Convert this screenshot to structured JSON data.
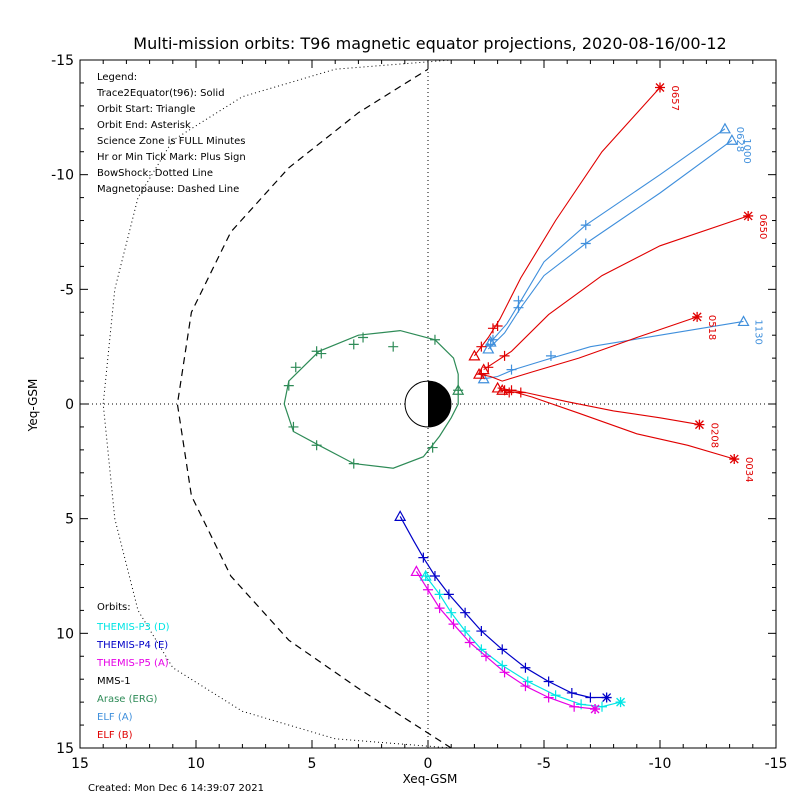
{
  "chart_data": {
    "type": "line",
    "title": "Multi-mission orbits: T96 magnetic equator projections, 2020-08-16/00-12",
    "xlabel": "Xeq-GSM",
    "ylabel": "Yeq-GSM",
    "xlim": [
      15,
      -15
    ],
    "ylim": [
      15,
      -15
    ],
    "x_ticks": [
      "15",
      "10",
      "5",
      "0",
      "-5",
      "-10",
      "-15"
    ],
    "y_ticks": [
      "-15",
      "-10",
      "-5",
      "0",
      "5",
      "10",
      "15"
    ],
    "created": "Created: Mon Dec  6 14:39:07 2021",
    "legend_lines": [
      "Legend:",
      "Trace2Equator(t96): Solid",
      "Orbit Start: Triangle",
      "Orbit End: Asterisk",
      "Science Zone is FULL Minutes",
      "Hr or Min Tick Mark: Plus Sign",
      "BowShock: Dotted Line",
      "Magnetopause: Dashed Line"
    ],
    "orbits_header": "Orbits:",
    "orbit_legend": [
      {
        "label": "THEMIS-P3 (D)",
        "color": "#00e5e5"
      },
      {
        "label": "THEMIS-P4 (E)",
        "color": "#0000c8"
      },
      {
        "label": "THEMIS-P5 (A)",
        "color": "#e600e6"
      },
      {
        "label": "MMS-1",
        "color": "#000000"
      },
      {
        "label": "Arase (ERG)",
        "color": "#2e8b57"
      },
      {
        "label": "ELF (A)",
        "color": "#3f8fdc"
      },
      {
        "label": "ELF (B)",
        "color": "#e00000"
      }
    ],
    "bow_shock": {
      "nose_x": 14.0,
      "points": [
        [
          -6.5,
          15
        ],
        [
          -1,
          15
        ],
        [
          4,
          14.6
        ],
        [
          8,
          13.4
        ],
        [
          11,
          11.5
        ],
        [
          12.5,
          9
        ],
        [
          13.5,
          5
        ],
        [
          14,
          0
        ],
        [
          13.5,
          -5
        ],
        [
          12.5,
          -9
        ],
        [
          11,
          -11.5
        ],
        [
          8,
          -13.4
        ],
        [
          4,
          -14.6
        ],
        [
          -1,
          -15
        ],
        [
          -6.5,
          -15
        ]
      ]
    },
    "magnetopause": {
      "points": [
        [
          -1,
          15
        ],
        [
          3,
          12.4
        ],
        [
          6,
          10.3
        ],
        [
          8.5,
          7.5
        ],
        [
          10.2,
          4
        ],
        [
          10.8,
          0
        ],
        [
          10.2,
          -4
        ],
        [
          8.5,
          -7.5
        ],
        [
          6,
          -10.3
        ],
        [
          3,
          -12.7
        ],
        [
          0,
          -14.6
        ]
      ]
    },
    "series": [
      {
        "name": "THEMIS-P3 (D)",
        "color": "#00e5e5",
        "points": [
          [
            0.1,
            7.5
          ],
          [
            -0.5,
            8.3
          ],
          [
            -1,
            9.1
          ],
          [
            -1.6,
            9.9
          ],
          [
            -2.3,
            10.7
          ],
          [
            -3.2,
            11.4
          ],
          [
            -4.3,
            12.1
          ],
          [
            -5.5,
            12.7
          ],
          [
            -6.6,
            13.1
          ],
          [
            -7.5,
            13.2
          ],
          [
            -8.3,
            13.0
          ]
        ],
        "ticks": [
          [
            0.1,
            7.5
          ],
          [
            -0.5,
            8.3
          ],
          [
            -1,
            9.1
          ],
          [
            -1.6,
            9.9
          ],
          [
            -2.3,
            10.7
          ],
          [
            -3.2,
            11.4
          ],
          [
            -4.3,
            12.1
          ],
          [
            -5.5,
            12.7
          ],
          [
            -6.6,
            13.1
          ],
          [
            -7.5,
            13.2
          ]
        ]
      },
      {
        "name": "THEMIS-P4 (E)",
        "color": "#0000c8",
        "points": [
          [
            1.2,
            4.9
          ],
          [
            0.6,
            6.0
          ],
          [
            0.2,
            6.7
          ],
          [
            -0.3,
            7.5
          ],
          [
            -0.9,
            8.3
          ],
          [
            -1.6,
            9.1
          ],
          [
            -2.3,
            9.9
          ],
          [
            -3.2,
            10.7
          ],
          [
            -4.2,
            11.5
          ],
          [
            -5.2,
            12.1
          ],
          [
            -6.2,
            12.6
          ],
          [
            -7.0,
            12.8
          ],
          [
            -7.7,
            12.8
          ]
        ],
        "ticks": [
          [
            0.2,
            6.7
          ],
          [
            -0.3,
            7.5
          ],
          [
            -0.9,
            8.3
          ],
          [
            -1.6,
            9.1
          ],
          [
            -2.3,
            9.9
          ],
          [
            -3.2,
            10.7
          ],
          [
            -4.2,
            11.5
          ],
          [
            -5.2,
            12.1
          ],
          [
            -6.2,
            12.6
          ],
          [
            -7.0,
            12.8
          ]
        ]
      },
      {
        "name": "THEMIS-P5 (A)",
        "color": "#e600e6",
        "points": [
          [
            0.5,
            7.3
          ],
          [
            0,
            8.1
          ],
          [
            -0.5,
            8.9
          ],
          [
            -1.1,
            9.6
          ],
          [
            -1.8,
            10.4
          ],
          [
            -2.5,
            11.0
          ],
          [
            -3.3,
            11.7
          ],
          [
            -4.2,
            12.3
          ],
          [
            -5.2,
            12.8
          ],
          [
            -6.3,
            13.2
          ],
          [
            -7.2,
            13.3
          ]
        ],
        "ticks": [
          [
            0,
            8.1
          ],
          [
            -0.5,
            8.9
          ],
          [
            -1.1,
            9.6
          ],
          [
            -1.8,
            10.4
          ],
          [
            -2.5,
            11.0
          ],
          [
            -3.3,
            11.7
          ],
          [
            -4.2,
            12.3
          ],
          [
            -5.2,
            12.8
          ],
          [
            -6.3,
            13.2
          ],
          [
            -7.2,
            13.3
          ]
        ]
      },
      {
        "name": "Arase (ERG)",
        "color": "#2e8b57",
        "points": [
          [
            -1.3,
            -0.6
          ],
          [
            -1.3,
            -1.3
          ],
          [
            -1.1,
            -2.0
          ],
          [
            -0.3,
            -2.8
          ],
          [
            1.2,
            -3.2
          ],
          [
            3.0,
            -3.0
          ],
          [
            4.7,
            -2.3
          ],
          [
            6.0,
            -1.0
          ],
          [
            6.2,
            0
          ],
          [
            5.8,
            1.2
          ],
          [
            4.7,
            1.8
          ],
          [
            3.2,
            2.6
          ],
          [
            1.5,
            2.8
          ],
          [
            0.2,
            2.3
          ],
          [
            -0.5,
            1.4
          ],
          [
            -1.0,
            0.6
          ],
          [
            -1.3,
            0
          ],
          [
            -1.3,
            -0.6
          ]
        ],
        "ticks": [
          [
            -1.3,
            -0.6
          ],
          [
            -0.3,
            -2.8
          ],
          [
            2.8,
            -2.9
          ],
          [
            4.6,
            -2.2
          ],
          [
            4.8,
            -2.3
          ],
          [
            5.7,
            -1.6
          ],
          [
            6.0,
            -0.8
          ],
          [
            5.8,
            1.0
          ],
          [
            4.8,
            1.8
          ],
          [
            3.2,
            2.6
          ],
          [
            -0.2,
            1.9
          ],
          [
            1.5,
            -2.5
          ],
          [
            3.2,
            -2.6
          ]
        ],
        "start": [
          -1.3,
          -0.6
        ]
      },
      {
        "name": "ELF (A)",
        "labels": [
          "0628",
          "1000",
          "1130"
        ],
        "color": "#3f8fdc",
        "traces": [
          {
            "points": [
              [
                -2.7,
                -2.7
              ],
              [
                -3.4,
                -3.5
              ],
              [
                -4.0,
                -4.5
              ],
              [
                -5.0,
                -6.2
              ],
              [
                -6.8,
                -7.8
              ],
              [
                -10,
                -10.0
              ],
              [
                -12.8,
                -12.0
              ]
            ],
            "ticks": [
              [
                -2.8,
                -2.8
              ],
              [
                -3.9,
                -4.5
              ],
              [
                -6.8,
                -7.8
              ]
            ],
            "label": "0628"
          },
          {
            "points": [
              [
                -2.6,
                -2.4
              ],
              [
                -3.3,
                -3.1
              ],
              [
                -4.0,
                -4.2
              ],
              [
                -5.0,
                -5.6
              ],
              [
                -6.8,
                -7.0
              ],
              [
                -10,
                -9.2
              ],
              [
                -13.1,
                -11.5
              ]
            ],
            "ticks": [
              [
                -2.7,
                -2.6
              ],
              [
                -3.9,
                -4.2
              ],
              [
                -6.8,
                -7.0
              ]
            ],
            "label": "1000"
          },
          {
            "points": [
              [
                -2.4,
                -1.1
              ],
              [
                -3.0,
                -1.2
              ],
              [
                -3.7,
                -1.5
              ],
              [
                -5.0,
                -1.9
              ],
              [
                -7,
                -2.5
              ],
              [
                -10,
                -3.0
              ],
              [
                -13.6,
                -3.6
              ]
            ],
            "ticks": [
              [
                -3.6,
                -1.5
              ],
              [
                -5.3,
                -2.1
              ]
            ],
            "label": "1130"
          }
        ]
      },
      {
        "name": "ELF (B)",
        "labels": [
          "0657",
          "0650",
          "0518",
          "0208",
          "0034"
        ],
        "color": "#e00000",
        "traces": [
          {
            "points": [
              [
                -2.0,
                -2.1
              ],
              [
                -2.6,
                -2.9
              ],
              [
                -3.1,
                -3.7
              ],
              [
                -4.0,
                -5.5
              ],
              [
                -5.5,
                -8.0
              ],
              [
                -7.5,
                -11.0
              ],
              [
                -10.0,
                -13.8
              ]
            ],
            "ticks": [
              [
                -2.3,
                -2.5
              ],
              [
                -2.8,
                -3.3
              ],
              [
                -3.0,
                -3.4
              ]
            ],
            "label": "0657"
          },
          {
            "points": [
              [
                -2.4,
                -1.5
              ],
              [
                -3.0,
                -1.9
              ],
              [
                -3.6,
                -2.3
              ],
              [
                -5.2,
                -3.9
              ],
              [
                -7.5,
                -5.6
              ],
              [
                -10,
                -6.9
              ],
              [
                -13.8,
                -8.2
              ]
            ],
            "ticks": [
              [
                -2.6,
                -1.6
              ],
              [
                -3.3,
                -2.1
              ]
            ],
            "label": "0650"
          },
          {
            "points": [
              [
                -2.2,
                -1.3
              ],
              [
                -2.7,
                -1.2
              ],
              [
                -3.2,
                -1.0
              ],
              [
                -4.5,
                -1.4
              ],
              [
                -6.5,
                -2.0
              ],
              [
                -9.0,
                -2.9
              ],
              [
                -11.6,
                -3.8
              ]
            ],
            "ticks": [
              [
                -2.3,
                -1.3
              ]
            ],
            "label": "0518"
          },
          {
            "points": [
              [
                -3.0,
                -0.7
              ],
              [
                -3.6,
                -0.6
              ],
              [
                -4.2,
                -0.5
              ],
              [
                -6.0,
                -0.1
              ],
              [
                -8.0,
                0.3
              ],
              [
                -10.0,
                0.6
              ],
              [
                -11.7,
                0.9
              ]
            ],
            "ticks": [
              [
                -3.3,
                -0.6
              ],
              [
                -3.6,
                -0.6
              ],
              [
                -4.0,
                -0.5
              ]
            ],
            "label": "0208"
          },
          {
            "points": [
              [
                -3.2,
                -0.6
              ],
              [
                -3.8,
                -0.5
              ],
              [
                -4.5,
                -0.3
              ],
              [
                -6.5,
                0.4
              ],
              [
                -9.0,
                1.3
              ],
              [
                -11.2,
                1.8
              ],
              [
                -13.2,
                2.4
              ]
            ],
            "ticks": [
              [
                -3.5,
                -0.5
              ]
            ],
            "label": "0034"
          }
        ]
      }
    ]
  }
}
